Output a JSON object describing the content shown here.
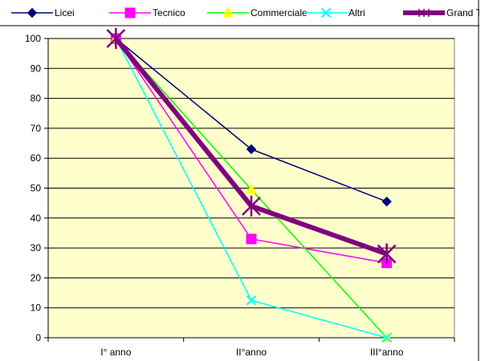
{
  "chart_data": {
    "type": "line",
    "title": "",
    "xlabel": "",
    "ylabel": "",
    "categories": [
      "I° anno",
      "II°anno",
      "III°anno"
    ],
    "ylim": [
      0,
      100
    ],
    "yticks": [
      0,
      10,
      20,
      30,
      40,
      50,
      60,
      70,
      80,
      90,
      100
    ],
    "grid": "horizontal",
    "legend": "top",
    "plot_background": "#ffffcc",
    "series": [
      {
        "name": "Licei",
        "values": [
          100,
          63,
          45.5
        ],
        "color": "#000080",
        "marker": "diamond",
        "width": 1.5
      },
      {
        "name": "Tecnico",
        "values": [
          100,
          33,
          25
        ],
        "color": "#ff00ff",
        "marker": "square",
        "width": 1.5
      },
      {
        "name": "Commerciale",
        "values": [
          100,
          49.5,
          0
        ],
        "color": "#00ff00",
        "marker": "triangle",
        "marker_color": "#ffff00",
        "width": 1.5
      },
      {
        "name": "Altri",
        "values": [
          100,
          12.5,
          0
        ],
        "color": "#00ffff",
        "marker": "x",
        "width": 1.5
      },
      {
        "name": "Grand Total",
        "values": [
          100,
          44,
          28
        ],
        "color": "#800080",
        "marker": "star",
        "width": 6
      }
    ]
  }
}
